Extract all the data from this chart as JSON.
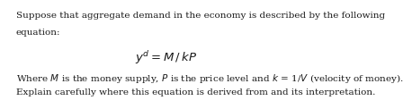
{
  "line1": "Suppose that aggregate demand in the economy is described by the following",
  "line2": "equation:",
  "line4": "Where $M$ is the money supply, $P$ is the price level and $k$ = 1/$V$ (velocity of money).",
  "line5": "Explain carefully where this equation is derived from and its interpretation.",
  "equation": "$y^d = M \\;/\\; kP$",
  "bg_color": "#ffffff",
  "text_color": "#1a1a1a",
  "font_size": 7.5,
  "eq_font_size": 9.5
}
